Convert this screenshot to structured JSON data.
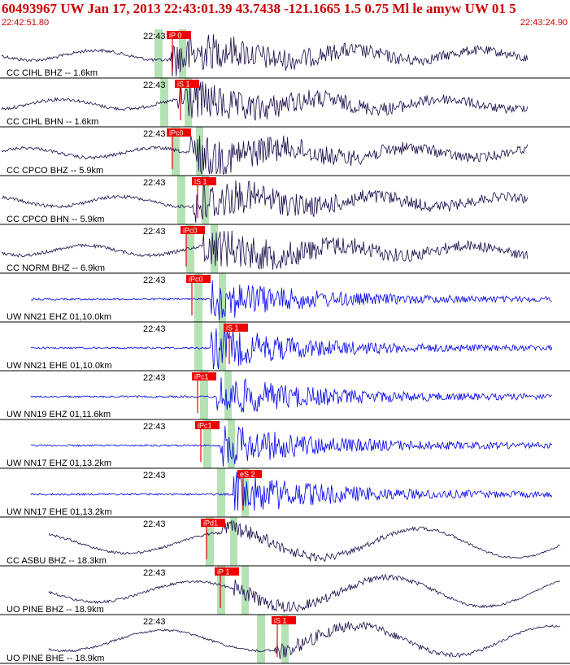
{
  "header": {
    "title": "60493967 UW Jan 17, 2013 22:43:01.39   43.7438 -121.1665  1.5 0.75 Ml le amyw UW 01   5",
    "start_time": "22:42:51.80",
    "end_time": "22:43:24.90"
  },
  "colors": {
    "title": "#cc0000",
    "trace_velocity": "#1a0a4a",
    "trace_short_period": "#0000ee",
    "pick": "#ee0000",
    "pick_window": "#b5e2b5",
    "separator": "#000000"
  },
  "traces": [
    {
      "label": "CC CIHL BHZ -- 1.6km",
      "time_label": "22:43",
      "pick": "iP 0",
      "kind": "broadband",
      "onset": 0.3,
      "pick_x": 0.295
    },
    {
      "label": "CC CIHL BHN -- 1.6km",
      "time_label": "22:43",
      "pick": "iS 1",
      "kind": "broadband",
      "onset": 0.31,
      "pick_x": 0.31
    },
    {
      "label": "CC CPCO BHZ -- 5.9km",
      "time_label": "22:43",
      "pick": "iPc0",
      "kind": "broadband",
      "onset": 0.33,
      "pick_x": 0.295
    },
    {
      "label": "CC CPCO BHN -- 5.9km",
      "time_label": "22:43",
      "pick": "iS 1",
      "kind": "broadband",
      "onset": 0.34,
      "pick_x": 0.34
    },
    {
      "label": "CC NORM BHZ -- 6.9km",
      "time_label": "22:43",
      "pick": "iPc0",
      "kind": "broadband",
      "onset": 0.355,
      "pick_x": 0.32
    },
    {
      "label": "UW NN21 EHZ 01,10.0km",
      "time_label": "22:43",
      "pick": "iPc0",
      "kind": "shortperiod",
      "onset": 0.37,
      "pick_x": 0.33
    },
    {
      "label": "UW NN21 EHE 01,10.0km",
      "time_label": "22:43",
      "pick": "iS 1",
      "kind": "shortperiod",
      "onset": 0.37,
      "pick_x": 0.395
    },
    {
      "label": "UW NN19 EHZ 01,11.6km",
      "time_label": "22:43",
      "pick": "iPc1",
      "kind": "shortperiod",
      "onset": 0.38,
      "pick_x": 0.34
    },
    {
      "label": "UW NN17 EHZ 01,13.2km",
      "time_label": "22:43",
      "pick": "iPc1",
      "kind": "shortperiod",
      "onset": 0.385,
      "pick_x": 0.345
    },
    {
      "label": "UW NN17 EHE 01,13.2km",
      "time_label": "22:43",
      "pick": "eS 2",
      "kind": "shortperiod",
      "onset": 0.41,
      "pick_x": 0.42
    },
    {
      "label": "CC ASBU BHZ -- 18.3km",
      "time_label": "22:43",
      "pick": "iPd1",
      "kind": "longperiod",
      "onset": 0.39,
      "pick_x": 0.355
    },
    {
      "label": "UO PINE BHZ -- 18.9km",
      "time_label": "22:43",
      "pick": "iP 1",
      "kind": "longperiod",
      "onset": 0.41,
      "pick_x": 0.38
    },
    {
      "label": "UO PINE BHE -- 18.9km",
      "time_label": "22:43",
      "pick": "iS 1",
      "kind": "longperiod",
      "onset": 0.48,
      "pick_x": 0.48
    }
  ]
}
